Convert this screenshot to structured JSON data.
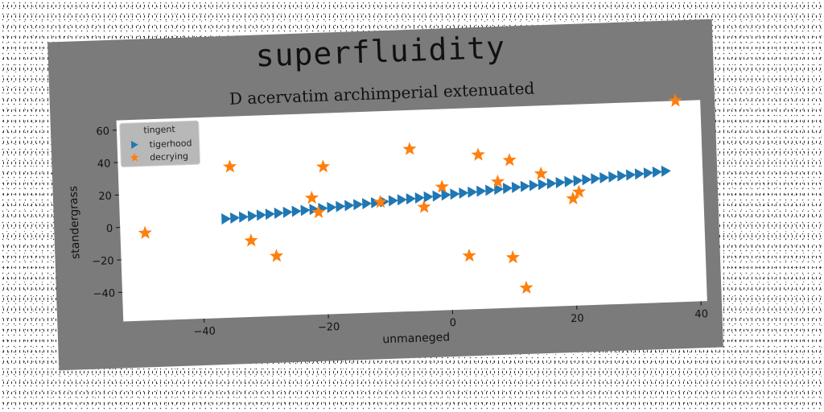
{
  "figure": {
    "title": "superfluidity",
    "subtitle": "D acervatim archimperial extenuated"
  },
  "chart_data": {
    "type": "scatter",
    "title": "D acervatim archimperial extenuated",
    "xlabel": "unmaneged",
    "ylabel": "standergrass",
    "xlim": [
      -53,
      41
    ],
    "ylim": [
      -58,
      66
    ],
    "xticks": [
      -40,
      -20,
      0,
      20,
      40
    ],
    "yticks": [
      -40,
      -20,
      0,
      20,
      40,
      60
    ],
    "grid": false,
    "legend": {
      "title": "tingent",
      "position": "top-left"
    },
    "series": [
      {
        "name": "tigerhood",
        "marker": "triangle-right",
        "color": "#1f77b4",
        "x_start": -36,
        "x_end": 35,
        "y_start": 3,
        "y_end": 23,
        "count": 51
      },
      {
        "name": "decrying",
        "marker": "star",
        "color": "#ff7f0e",
        "points": [
          [
            -49,
            -4
          ],
          [
            -35,
            35
          ],
          [
            -32,
            -11
          ],
          [
            -28,
            -21
          ],
          [
            -22,
            14
          ],
          [
            -21,
            5
          ],
          [
            -20,
            33
          ],
          [
            -11,
            10
          ],
          [
            -6,
            42
          ],
          [
            -4,
            6
          ],
          [
            -1,
            18
          ],
          [
            3,
            -25
          ],
          [
            5,
            37
          ],
          [
            8,
            20
          ],
          [
            10,
            -27
          ],
          [
            10,
            33
          ],
          [
            12,
            -46
          ],
          [
            15,
            24
          ],
          [
            20,
            8
          ],
          [
            21,
            12
          ],
          [
            37,
            66
          ]
        ]
      }
    ]
  }
}
